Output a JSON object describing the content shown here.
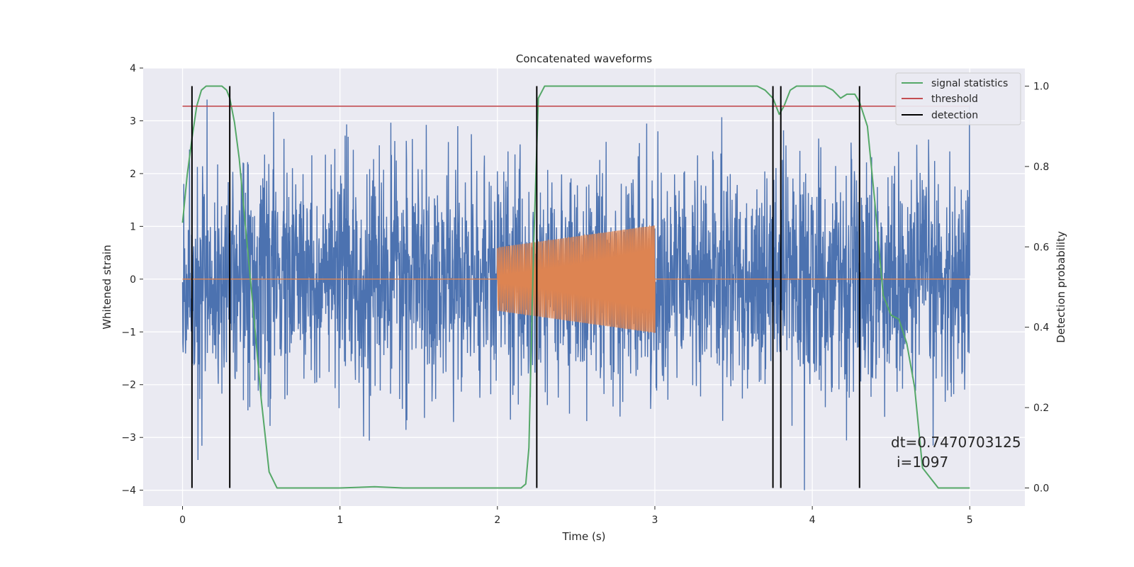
{
  "chart_data": {
    "type": "line",
    "title": "Concatenated waveforms",
    "xlabel": "Time (s)",
    "ylabel": "Whitened strain",
    "y2label": "Detection probability",
    "xlim": [
      -0.25,
      5.35
    ],
    "ylim": [
      -4.3,
      4.0
    ],
    "y2lim": [
      -0.045,
      1.045
    ],
    "xticks": [
      0,
      1,
      2,
      3,
      4,
      5
    ],
    "yticks": [
      4,
      3,
      2,
      1,
      0,
      -1,
      -2,
      -3,
      -4
    ],
    "ytick_labels": [
      "4",
      "3",
      "2",
      "1",
      "0",
      "−1",
      "−2",
      "−3",
      "−4"
    ],
    "y2ticks": [
      1.0,
      0.8,
      0.6,
      0.4,
      0.2,
      0.0
    ],
    "y2tick_labels": [
      "1.0",
      "0.8",
      "0.6",
      "0.4",
      "0.2",
      "0.0"
    ],
    "grid": true,
    "legend_position": "top-right",
    "colors": {
      "strain": "#4c72b0",
      "injected": "#dd8452",
      "signal_statistics": "#55a868",
      "threshold": "#c44e52",
      "detection": "#000000",
      "background": "#eaeaf2"
    },
    "series": [
      {
        "name": "signal statistics",
        "axis": "right",
        "x": [
          0.0,
          0.03,
          0.06,
          0.09,
          0.12,
          0.15,
          0.2,
          0.25,
          0.28,
          0.3,
          0.33,
          0.36,
          0.4,
          0.45,
          0.5,
          0.55,
          0.6,
          1.0,
          1.22,
          1.4,
          2.0,
          2.15,
          2.18,
          2.2,
          2.23,
          2.26,
          2.3,
          2.35,
          2.5,
          3.0,
          3.5,
          3.65,
          3.7,
          3.75,
          3.79,
          3.82,
          3.86,
          3.9,
          4.0,
          4.08,
          4.13,
          4.18,
          4.22,
          4.27,
          4.3,
          4.35,
          4.4,
          4.45,
          4.5,
          4.55,
          4.6,
          4.65,
          4.7,
          4.8,
          5.0
        ],
        "y": [
          0.66,
          0.78,
          0.87,
          0.95,
          0.99,
          1.0,
          1.0,
          1.0,
          0.99,
          0.97,
          0.91,
          0.82,
          0.65,
          0.44,
          0.22,
          0.04,
          0.0,
          0.0,
          0.003,
          0.0,
          0.0,
          0.0,
          0.01,
          0.1,
          0.6,
          0.97,
          1.0,
          1.0,
          1.0,
          1.0,
          1.0,
          1.0,
          0.99,
          0.97,
          0.93,
          0.95,
          0.99,
          1.0,
          1.0,
          1.0,
          0.99,
          0.97,
          0.98,
          0.98,
          0.96,
          0.9,
          0.7,
          0.48,
          0.43,
          0.42,
          0.36,
          0.25,
          0.05,
          0.0,
          0.0
        ]
      },
      {
        "name": "threshold",
        "axis": "right",
        "x": [
          0.0,
          5.0
        ],
        "y": [
          0.95,
          0.95
        ]
      },
      {
        "name": "detection",
        "axis": "right",
        "x": [
          0.06,
          0.3,
          2.25,
          3.75,
          3.8,
          4.3
        ],
        "y": [
          1.0,
          1.0,
          1.0,
          1.0,
          1.0,
          1.0
        ]
      }
    ],
    "annotation": {
      "dt": "dt=0.7470703125",
      "i": "i=1097"
    }
  }
}
